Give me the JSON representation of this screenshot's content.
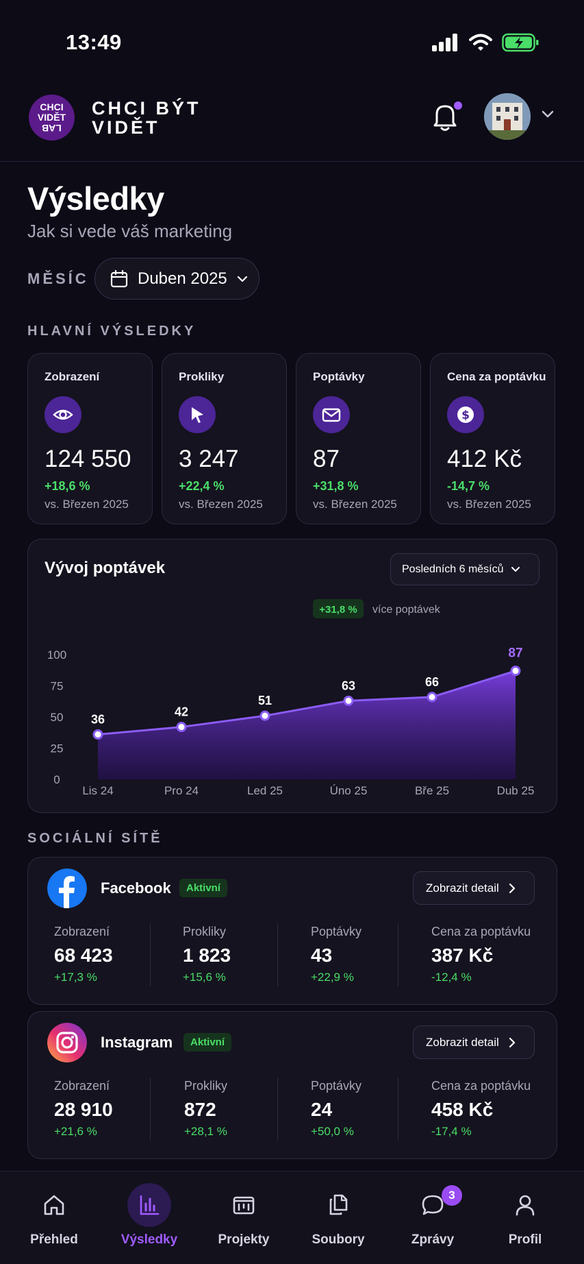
{
  "status_bar": {
    "time": "13:49"
  },
  "header": {
    "logo_lines": [
      "CHCI",
      "VIDĚT",
      "LAB"
    ],
    "brand_lines": [
      "CHCI BÝT",
      "VIDĚT"
    ]
  },
  "page": {
    "title": "Výsledky",
    "subtitle": "Jak si vede váš marketing"
  },
  "filter": {
    "label": "MĚSÍC",
    "value": "Duben 2025"
  },
  "main_results": {
    "label": "HLAVNÍ VÝSLEDKY",
    "cards": [
      {
        "label": "Zobrazení",
        "icon": "eye-icon",
        "value": "124 550",
        "change": "+18,6 %",
        "vs": "vs. Březen 2025"
      },
      {
        "label": "Prokliky",
        "icon": "cursor-icon",
        "value": "3 247",
        "change": "+22,4 %",
        "vs": "vs. Březen 2025"
      },
      {
        "label": "Poptávky",
        "icon": "mail-icon",
        "value": "87",
        "change": "+31,8 %",
        "vs": "vs. Březen 2025"
      },
      {
        "label": "Cena za poptávku",
        "icon": "dollar-icon",
        "value": "412 Kč",
        "change": "-14,7 %",
        "vs": "vs. Březen 2025"
      }
    ]
  },
  "trend": {
    "title": "Vývoj poptávek",
    "range": "Posledních 6 měsíců",
    "badge": "+31,8 %",
    "badge_text": "více poptávek"
  },
  "chart_data": {
    "type": "area",
    "categories": [
      "Lis 24",
      "Pro 24",
      "Led 25",
      "Úno 25",
      "Bře 25",
      "Dub 25"
    ],
    "values": [
      36,
      42,
      51,
      63,
      66,
      87
    ],
    "yticks": [
      0,
      25,
      50,
      75,
      100
    ],
    "ylim": [
      0,
      100
    ],
    "grid": false,
    "colors": {
      "area_top": "#7b3fe4",
      "area_bottom": "#2a1060",
      "line": "#8b5cf6",
      "highlight": "#a66cff"
    }
  },
  "social": {
    "label": "SOCIÁLNÍ SÍTĚ",
    "items": [
      {
        "name": "Facebook",
        "status": "Aktivní",
        "button": "Zobrazit detail",
        "metrics": [
          {
            "label": "Zobrazení",
            "value": "68 423",
            "change": "+17,3 %"
          },
          {
            "label": "Prokliky",
            "value": "1 823",
            "change": "+15,6 %"
          },
          {
            "label": "Poptávky",
            "value": "43",
            "change": "+22,9 %"
          },
          {
            "label": "Cena za poptávku",
            "value": "387 Kč",
            "change": "-12,4 %"
          }
        ]
      },
      {
        "name": "Instagram",
        "status": "Aktivní",
        "button": "Zobrazit detail",
        "metrics": [
          {
            "label": "Zobrazení",
            "value": "28 910",
            "change": "+21,6 %"
          },
          {
            "label": "Prokliky",
            "value": "872",
            "change": "+28,1 %"
          },
          {
            "label": "Poptávky",
            "value": "24",
            "change": "+50,0 %"
          },
          {
            "label": "Cena za poptávku",
            "value": "458 Kč",
            "change": "-17,4 %"
          }
        ]
      }
    ]
  },
  "tabs": [
    {
      "label": "Přehled",
      "icon": "home-icon",
      "active": false
    },
    {
      "label": "Výsledky",
      "icon": "chart-icon",
      "active": true
    },
    {
      "label": "Projekty",
      "icon": "board-icon",
      "active": false
    },
    {
      "label": "Soubory",
      "icon": "files-icon",
      "active": false
    },
    {
      "label": "Zprávy",
      "icon": "chat-icon",
      "active": false,
      "badge": "3"
    },
    {
      "label": "Profil",
      "icon": "user-icon",
      "active": false
    }
  ]
}
